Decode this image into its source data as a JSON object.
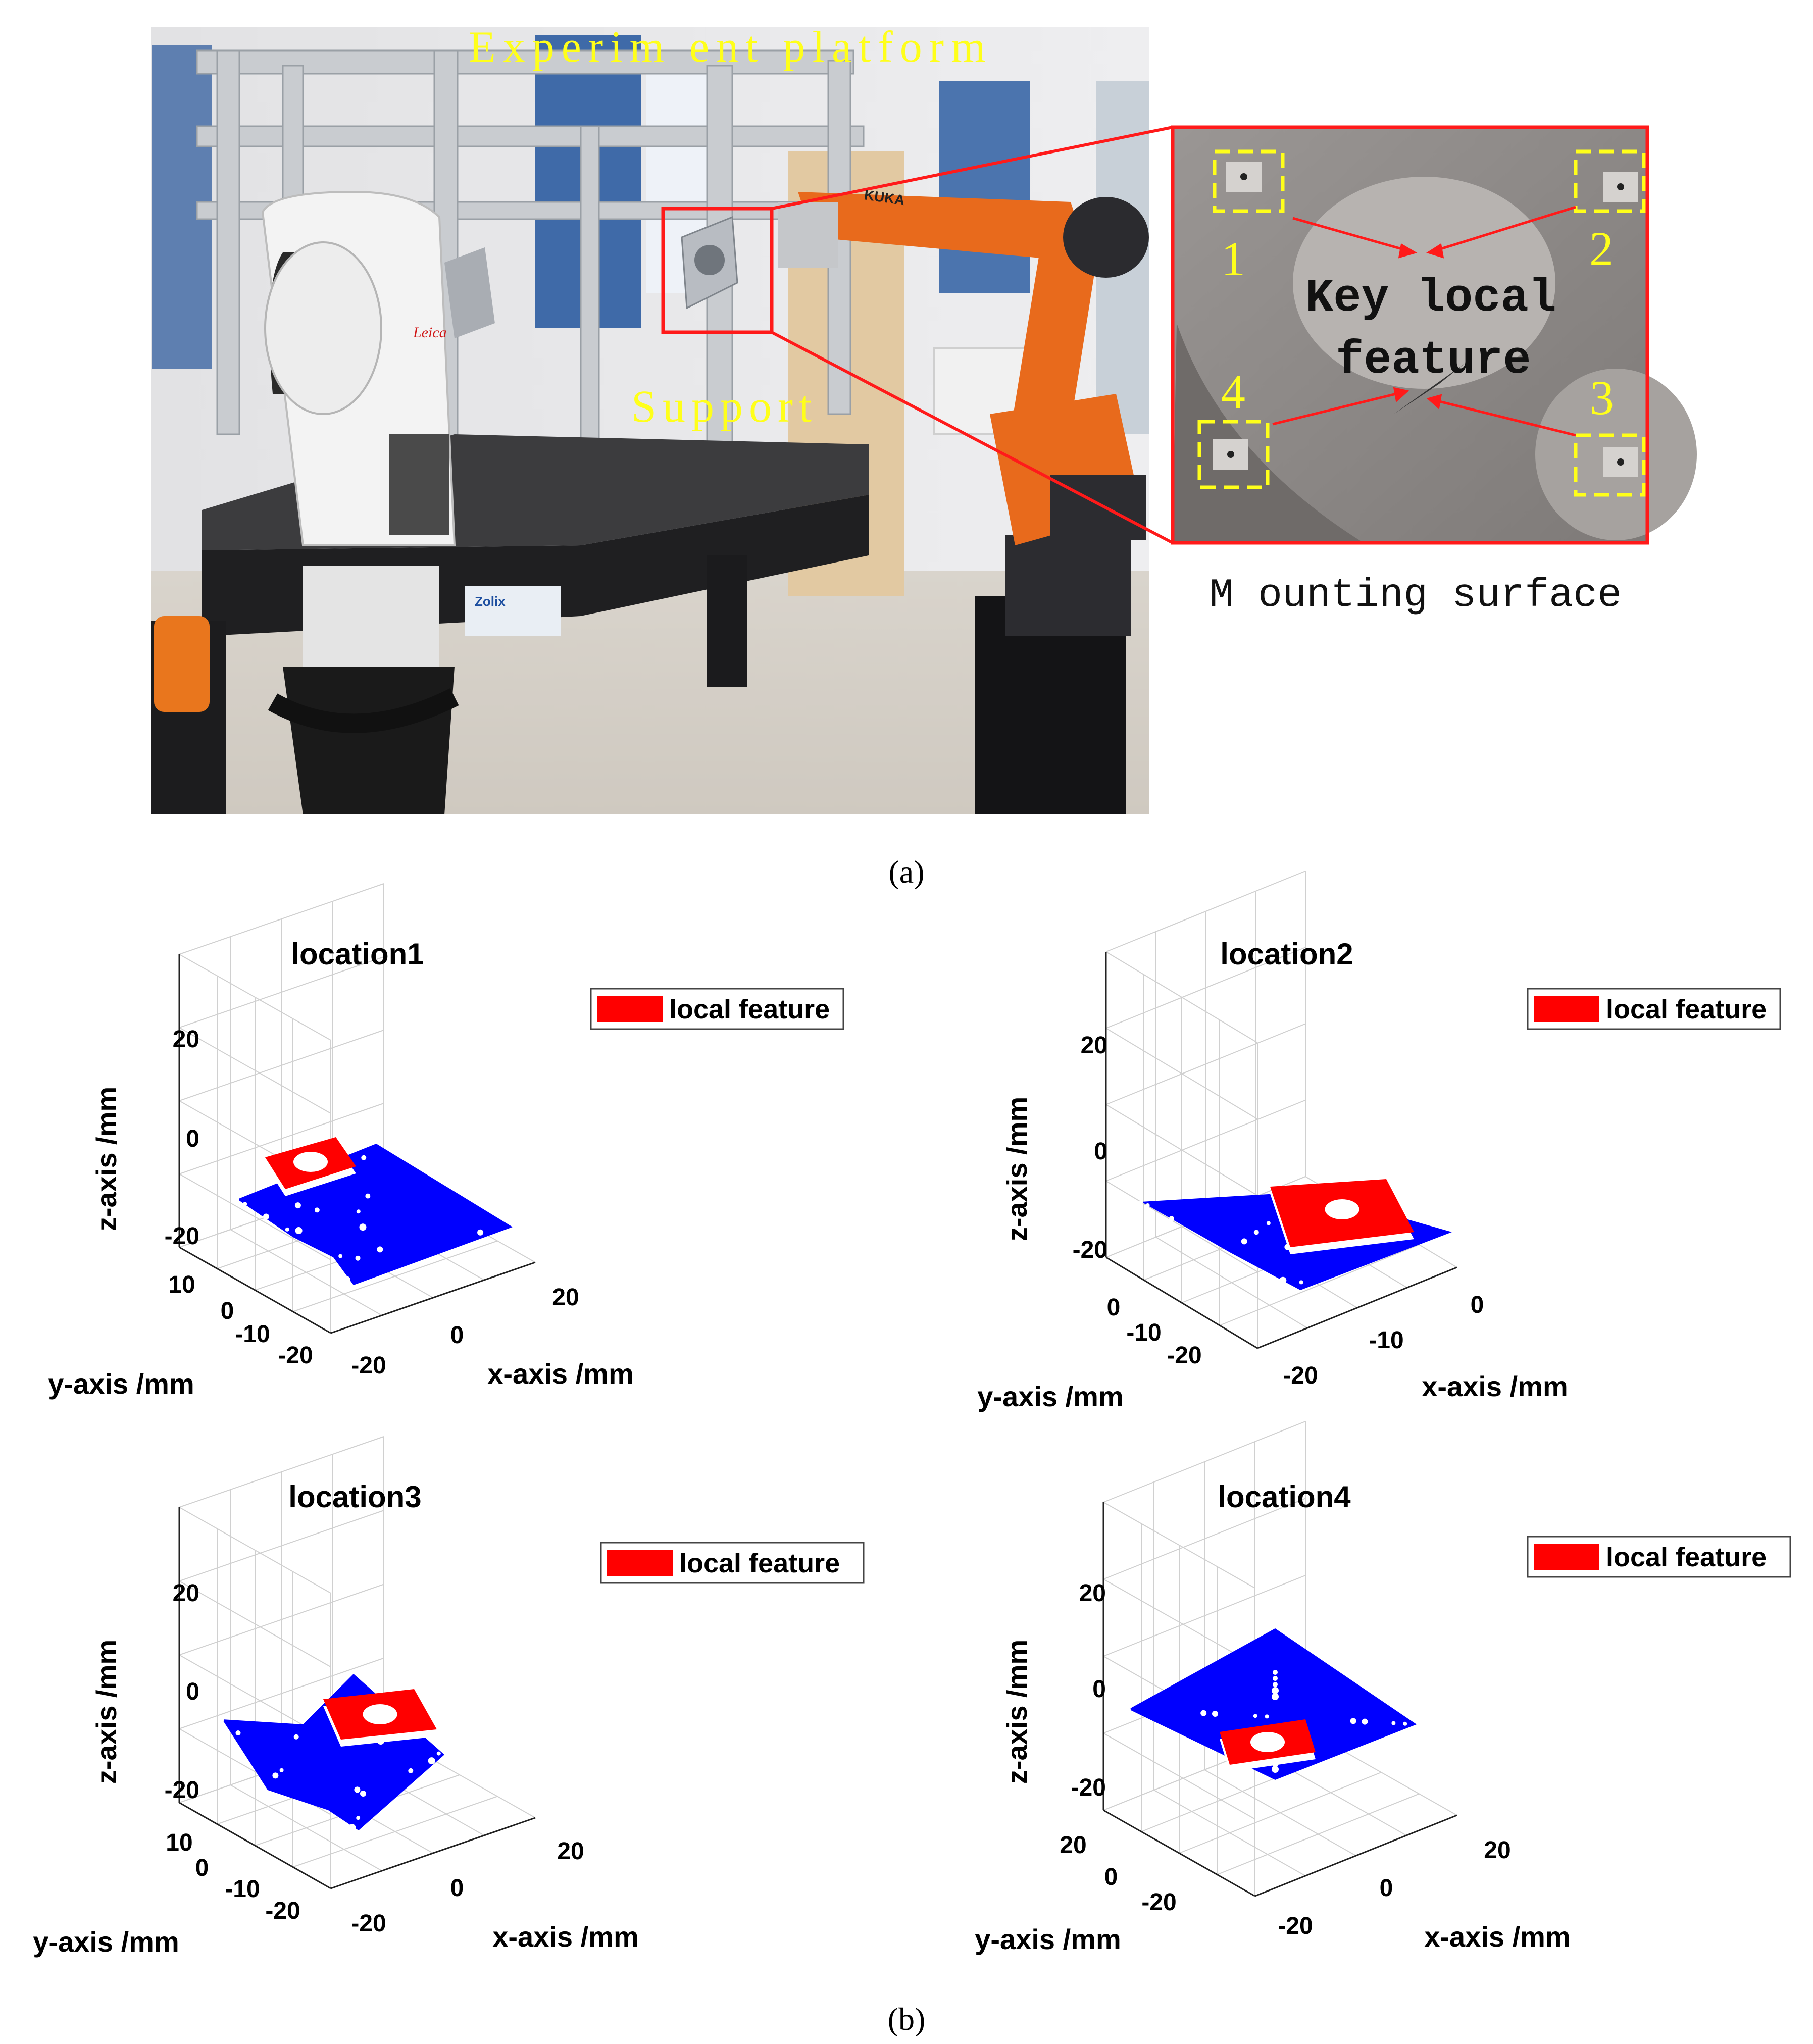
{
  "photo": {
    "annotations": {
      "platform": "Experim ent platform",
      "support": "Support",
      "mounting_surface": "M ounting surface",
      "key_feature_line1": "Key local",
      "key_feature_line2": "feature",
      "hole_labels": [
        "1",
        "2",
        "3",
        "4"
      ]
    },
    "logos": {
      "tracker_brand": "Leica",
      "robot_brand": "KUKA",
      "table_brand": "Zolix"
    },
    "colors": {
      "annotation_yellow": "#ffff1a",
      "highlight_red": "#ff1a1a",
      "robot_orange": "#e86a1c"
    }
  },
  "captions": {
    "a": "(a)",
    "b": "(b)"
  },
  "chart_data": [
    {
      "type": "scatter3d",
      "title": "location1",
      "xlabel": "x-axis /mm",
      "ylabel": "y-axis /mm",
      "zlabel": "z-axis /mm",
      "xticks": [
        "-20",
        "0",
        "20"
      ],
      "yticks": [
        "10",
        "0",
        "-10",
        "-20"
      ],
      "zticks": [
        "20",
        "0",
        "-20"
      ],
      "legend": [
        "local feature"
      ],
      "legend_position": "top-right",
      "series": [
        {
          "name": "local feature",
          "color": "#ff0000"
        },
        {
          "color": "#0000ff"
        }
      ]
    },
    {
      "type": "scatter3d",
      "title": "location2",
      "xlabel": "x-axis /mm",
      "ylabel": "y-axis /mm",
      "zlabel": "z-axis /mm",
      "xticks": [
        "-20",
        "-10",
        "0"
      ],
      "yticks": [
        "0",
        "-10",
        "-20"
      ],
      "zticks": [
        "20",
        "0",
        "-20"
      ],
      "legend": [
        "local feature"
      ],
      "legend_position": "top-right",
      "series": [
        {
          "name": "local feature",
          "color": "#ff0000"
        },
        {
          "color": "#0000ff"
        }
      ]
    },
    {
      "type": "scatter3d",
      "title": "location3",
      "xlabel": "x-axis /mm",
      "ylabel": "y-axis /mm",
      "zlabel": "z-axis /mm",
      "xticks": [
        "-20",
        "0",
        "20"
      ],
      "yticks": [
        "10",
        "0",
        "-10",
        "-20"
      ],
      "zticks": [
        "20",
        "0",
        "-20"
      ],
      "legend": [
        "local feature"
      ],
      "legend_position": "top-right",
      "series": [
        {
          "name": "local feature",
          "color": "#ff0000"
        },
        {
          "color": "#0000ff"
        }
      ]
    },
    {
      "type": "scatter3d",
      "title": "location4",
      "xlabel": "x-axis /mm",
      "ylabel": "y-axis /mm",
      "zlabel": "z-axis /mm",
      "xticks": [
        "-20",
        "0",
        "20"
      ],
      "yticks": [
        "20",
        "0",
        "-20"
      ],
      "zticks": [
        "20",
        "0",
        "-20"
      ],
      "legend": [
        "local feature"
      ],
      "legend_position": "top-right",
      "series": [
        {
          "name": "local feature",
          "color": "#ff0000"
        },
        {
          "color": "#0000ff"
        }
      ]
    }
  ]
}
